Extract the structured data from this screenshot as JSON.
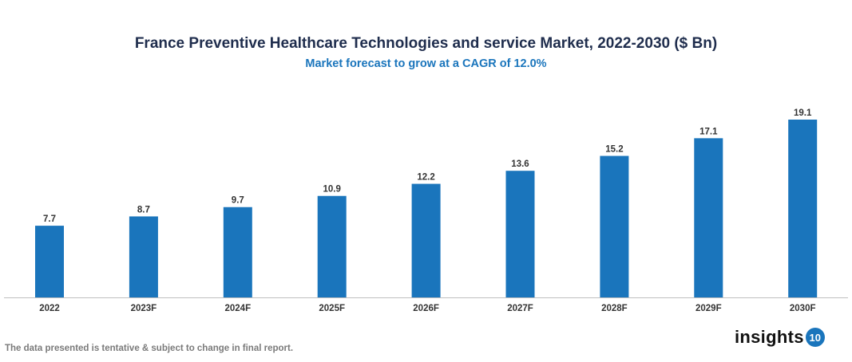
{
  "chart_data": {
    "type": "bar",
    "title": "France Preventive Healthcare Technologies and service Market, 2022-2030 ($ Bn)",
    "subtitle": "Market forecast to grow at a CAGR of 12.0%",
    "categories": [
      "2022",
      "2023F",
      "2024F",
      "2025F",
      "2026F",
      "2027F",
      "2028F",
      "2029F",
      "2030F"
    ],
    "values": [
      7.7,
      8.7,
      9.7,
      10.9,
      12.2,
      13.6,
      15.2,
      17.1,
      19.1
    ],
    "value_labels": [
      "7.7",
      "8.7",
      "9.7",
      "10.9",
      "12.2",
      "13.6",
      "15.2",
      "17.1",
      "19.1"
    ],
    "xlabel": "",
    "ylabel": "",
    "ylim": [
      0,
      19.1
    ],
    "grid": false,
    "bar_color": "#1a75bc",
    "data_labels": true
  },
  "footer": "The data presented is tentative & subject to change in final report.",
  "logo": {
    "text": "insights",
    "badge": "10"
  }
}
